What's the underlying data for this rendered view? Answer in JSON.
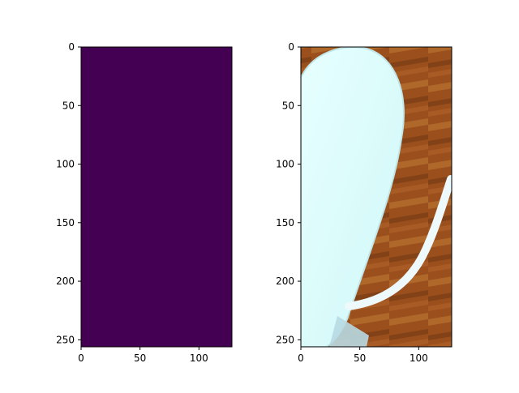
{
  "figure": {
    "background": "#ffffff"
  },
  "chart_data": [
    {
      "type": "heatmap",
      "description_visible": "uniform image panel",
      "xlim": [
        0,
        128
      ],
      "ylim": [
        256,
        0
      ],
      "xticks": [
        0,
        50,
        100
      ],
      "yticks": [
        0,
        50,
        100,
        150,
        200,
        250
      ],
      "fill_color": "#440154"
    },
    {
      "type": "heatmap",
      "description_visible": "image panel",
      "xlim": [
        0,
        128
      ],
      "ylim": [
        256,
        0
      ],
      "xticks": [
        0,
        50,
        100
      ],
      "yticks": [
        0,
        50,
        100,
        150,
        200,
        250
      ],
      "colors": {
        "background": "#9a4f1c",
        "background_light": "#c17a35",
        "background_dark": "#6f3511",
        "shape_fill": "#d8fbfb",
        "shape_edge": "#bfe6ea",
        "stripe": "#eef9fb"
      }
    }
  ]
}
